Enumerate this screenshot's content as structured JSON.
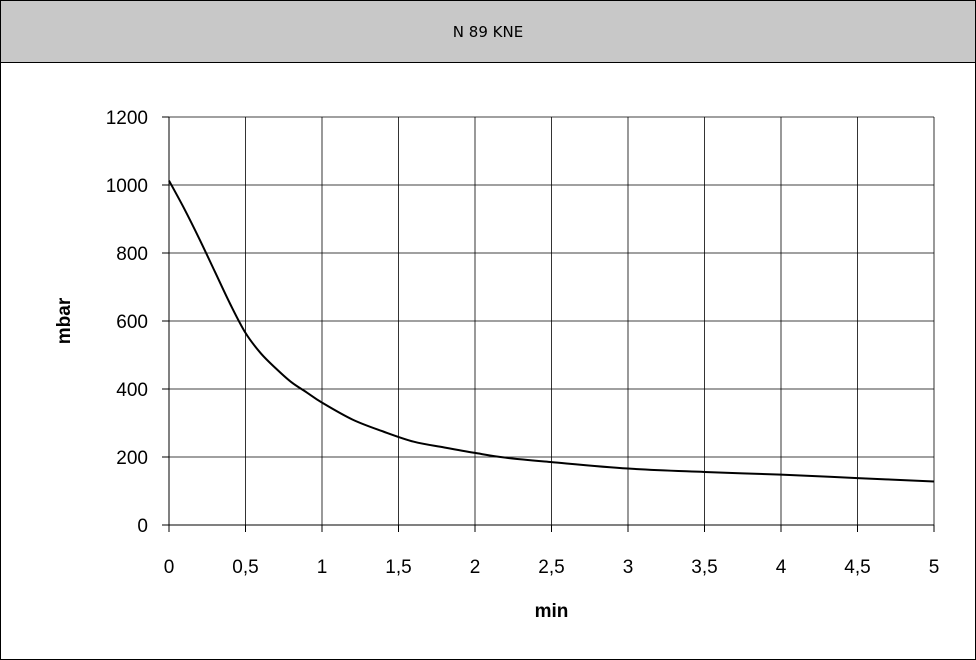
{
  "header": {
    "title": "N 89 KNE"
  },
  "chart_data": {
    "type": "line",
    "title": "N 89 KNE",
    "xlabel": "min",
    "ylabel": "mbar",
    "xlim": [
      0,
      5
    ],
    "ylim": [
      0,
      1200
    ],
    "x_ticks": [
      "0",
      "0,5",
      "1",
      "1,5",
      "2",
      "2,5",
      "3",
      "3,5",
      "4",
      "4,5",
      "5"
    ],
    "y_ticks": [
      "0",
      "200",
      "400",
      "600",
      "800",
      "1000",
      "1200"
    ],
    "grid": true,
    "colors": {
      "line": "#000000",
      "grid": "#000000",
      "header": "#c8c8c8"
    },
    "series": [
      {
        "x": [
          0,
          0.1,
          0.2,
          0.3,
          0.4,
          0.5,
          0.6,
          0.7,
          0.8,
          0.9,
          1.0,
          1.2,
          1.4,
          1.6,
          1.8,
          2.0,
          2.2,
          2.5,
          3.0,
          3.5,
          4.0,
          4.5,
          5.0
        ],
        "y": [
          1013,
          930,
          840,
          745,
          650,
          565,
          505,
          460,
          420,
          390,
          360,
          310,
          275,
          245,
          228,
          212,
          198,
          185,
          166,
          156,
          148,
          138,
          128
        ]
      }
    ]
  }
}
